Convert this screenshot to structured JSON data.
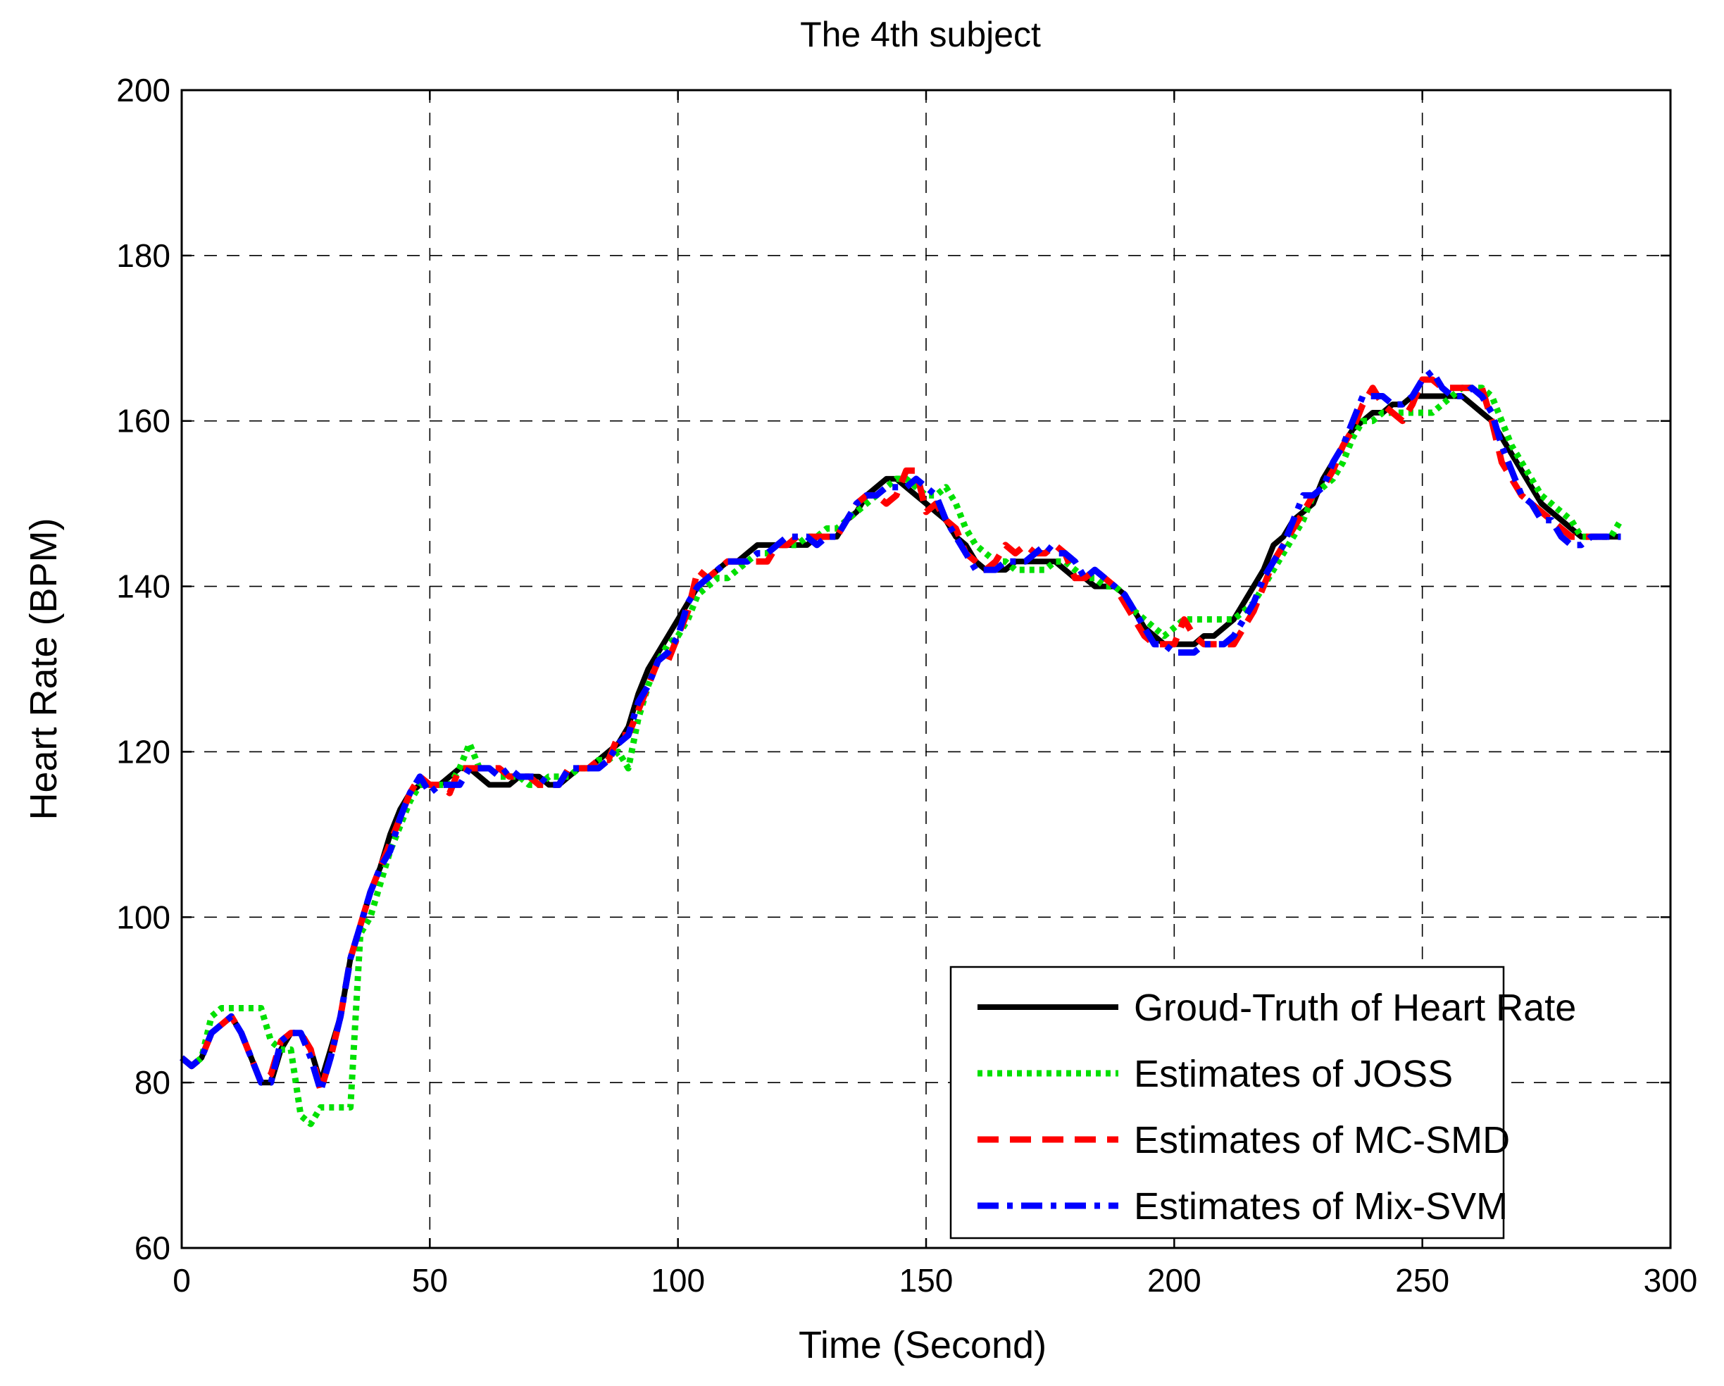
{
  "chart_data": {
    "type": "line",
    "title": "The 4th subject",
    "xlabel": "Time (Second)",
    "ylabel": "Heart Rate (BPM)",
    "xlim": [
      0,
      300
    ],
    "ylim": [
      60,
      200
    ],
    "xticks": [
      0,
      50,
      100,
      150,
      200,
      250,
      300
    ],
    "yticks": [
      60,
      80,
      100,
      120,
      140,
      160,
      180,
      200
    ],
    "grid": true,
    "legend_position": "bottom-right",
    "series": [
      {
        "name": "Groud-Truth of Heart Rate",
        "color": "#000000",
        "style": "solid",
        "x": [
          0,
          2,
          4,
          6,
          8,
          10,
          12,
          14,
          16,
          18,
          20,
          22,
          24,
          26,
          28,
          30,
          32,
          34,
          36,
          38,
          40,
          42,
          44,
          46,
          48,
          50,
          52,
          54,
          56,
          58,
          60,
          62,
          64,
          66,
          68,
          70,
          72,
          74,
          76,
          78,
          80,
          82,
          84,
          86,
          88,
          90,
          92,
          94,
          96,
          98,
          100,
          102,
          104,
          106,
          108,
          110,
          112,
          114,
          116,
          118,
          120,
          122,
          124,
          126,
          128,
          130,
          132,
          134,
          136,
          138,
          140,
          142,
          144,
          146,
          148,
          150,
          152,
          154,
          156,
          158,
          160,
          162,
          164,
          166,
          168,
          170,
          172,
          174,
          176,
          178,
          180,
          182,
          184,
          186,
          188,
          190,
          192,
          194,
          196,
          198,
          200,
          202,
          204,
          206,
          208,
          210,
          212,
          214,
          216,
          218,
          220,
          222,
          224,
          226,
          228,
          230,
          232,
          234,
          236,
          238,
          240,
          242,
          244,
          246,
          248,
          250,
          252,
          254,
          256,
          258,
          260,
          262,
          264,
          266,
          268,
          270,
          272,
          274,
          276,
          278,
          280,
          282,
          284,
          286,
          288,
          290
        ],
        "values": [
          83,
          82,
          83,
          86,
          87,
          88,
          86,
          83,
          80,
          80,
          84,
          86,
          86,
          84,
          80,
          84,
          88,
          95,
          99,
          103,
          106,
          110,
          113,
          115,
          116,
          116,
          116,
          117,
          118,
          118,
          117,
          116,
          116,
          116,
          117,
          117,
          117,
          116,
          116,
          117,
          118,
          118,
          119,
          120,
          121,
          123,
          127,
          130,
          132,
          134,
          136,
          138,
          140,
          141,
          142,
          143,
          143,
          144,
          145,
          145,
          145,
          145,
          145,
          145,
          146,
          146,
          146,
          148,
          149,
          151,
          152,
          153,
          153,
          152,
          151,
          150,
          149,
          148,
          146,
          145,
          143,
          142,
          142,
          142,
          143,
          143,
          143,
          143,
          143,
          142,
          141,
          141,
          140,
          140,
          140,
          139,
          137,
          135,
          134,
          133,
          133,
          133,
          133,
          134,
          134,
          135,
          136,
          138,
          140,
          142,
          145,
          146,
          148,
          149,
          150,
          153,
          155,
          157,
          159,
          160,
          161,
          161,
          162,
          162,
          163,
          163,
          163,
          163,
          163,
          163,
          162,
          161,
          160,
          158,
          156,
          154,
          152,
          150,
          149,
          148,
          147,
          146,
          146,
          146,
          146,
          146
        ]
      },
      {
        "name": "Estimates of JOSS",
        "color": "#00e000",
        "style": "dotted",
        "x": [
          0,
          2,
          4,
          6,
          8,
          10,
          12,
          14,
          16,
          18,
          20,
          22,
          24,
          26,
          28,
          30,
          32,
          34,
          36,
          38,
          40,
          42,
          44,
          46,
          48,
          50,
          52,
          54,
          56,
          58,
          60,
          62,
          64,
          66,
          68,
          70,
          72,
          74,
          76,
          78,
          80,
          82,
          84,
          86,
          88,
          90,
          92,
          94,
          96,
          98,
          100,
          102,
          104,
          106,
          108,
          110,
          112,
          114,
          116,
          118,
          120,
          122,
          124,
          126,
          128,
          130,
          132,
          134,
          136,
          138,
          140,
          142,
          144,
          146,
          148,
          150,
          152,
          154,
          156,
          158,
          160,
          162,
          164,
          166,
          168,
          170,
          172,
          174,
          176,
          178,
          180,
          182,
          184,
          186,
          188,
          190,
          192,
          194,
          196,
          198,
          200,
          202,
          204,
          206,
          208,
          210,
          212,
          214,
          216,
          218,
          220,
          222,
          224,
          226,
          228,
          230,
          232,
          234,
          236,
          238,
          240,
          242,
          244,
          246,
          248,
          250,
          252,
          254,
          256,
          258,
          260,
          262,
          264,
          266,
          268,
          270,
          272,
          274,
          276,
          278,
          280,
          282,
          284,
          286,
          288,
          290
        ],
        "values": [
          83,
          82,
          83,
          88,
          89,
          89,
          89,
          89,
          89,
          85,
          84,
          84,
          76,
          75,
          77,
          77,
          77,
          77,
          98,
          100,
          104,
          108,
          111,
          114,
          116,
          116,
          116,
          116,
          118,
          121,
          118,
          118,
          117,
          117,
          117,
          116,
          116,
          117,
          117,
          117,
          118,
          118,
          119,
          119,
          120,
          118,
          124,
          128,
          131,
          133,
          134,
          136,
          139,
          140,
          141,
          141,
          142,
          143,
          144,
          144,
          145,
          145,
          145,
          146,
          146,
          147,
          147,
          148,
          149,
          150,
          151,
          152,
          153,
          153,
          152,
          151,
          151,
          152,
          150,
          147,
          145,
          144,
          143,
          143,
          142,
          142,
          142,
          142,
          143,
          143,
          142,
          141,
          141,
          140,
          140,
          139,
          137,
          136,
          135,
          134,
          135,
          136,
          136,
          136,
          136,
          136,
          136,
          137,
          138,
          140,
          142,
          144,
          146,
          148,
          151,
          152,
          153,
          155,
          158,
          160,
          160,
          161,
          161,
          161,
          161,
          161,
          161,
          162,
          163,
          164,
          164,
          164,
          163,
          160,
          157,
          155,
          153,
          151,
          150,
          149,
          148,
          146,
          146,
          146,
          146,
          148
        ]
      },
      {
        "name": "Estimates of MC-SMD",
        "color": "#ff0000",
        "style": "dashed",
        "x": [
          0,
          2,
          4,
          6,
          8,
          10,
          12,
          14,
          16,
          18,
          20,
          22,
          24,
          26,
          28,
          30,
          32,
          34,
          36,
          38,
          40,
          42,
          44,
          46,
          48,
          50,
          52,
          54,
          56,
          58,
          60,
          62,
          64,
          66,
          68,
          70,
          72,
          74,
          76,
          78,
          80,
          82,
          84,
          86,
          88,
          90,
          92,
          94,
          96,
          98,
          100,
          102,
          104,
          106,
          108,
          110,
          112,
          114,
          116,
          118,
          120,
          122,
          124,
          126,
          128,
          130,
          132,
          134,
          136,
          138,
          140,
          142,
          144,
          146,
          148,
          150,
          152,
          154,
          156,
          158,
          160,
          162,
          164,
          166,
          168,
          170,
          172,
          174,
          176,
          178,
          180,
          182,
          184,
          186,
          188,
          190,
          192,
          194,
          196,
          198,
          200,
          202,
          204,
          206,
          208,
          210,
          212,
          214,
          216,
          218,
          220,
          222,
          224,
          226,
          228,
          230,
          232,
          234,
          236,
          238,
          240,
          242,
          244,
          246,
          248,
          250,
          252,
          254,
          256,
          258,
          260,
          262,
          264,
          266,
          268,
          270,
          272,
          274,
          276,
          278,
          280,
          282,
          284,
          286,
          288,
          290
        ],
        "values": [
          83,
          82,
          83,
          86,
          87,
          88,
          86,
          83,
          80,
          81,
          85,
          86,
          86,
          84,
          79,
          83,
          88,
          95,
          99,
          103,
          106,
          109,
          112,
          115,
          117,
          116,
          116,
          115,
          118,
          118,
          118,
          118,
          118,
          117,
          117,
          117,
          116,
          116,
          116,
          118,
          118,
          118,
          119,
          119,
          122,
          122,
          125,
          128,
          131,
          131,
          134,
          137,
          142,
          141,
          142,
          143,
          143,
          143,
          143,
          143,
          145,
          145,
          146,
          146,
          146,
          146,
          146,
          148,
          150,
          151,
          151,
          150,
          151,
          154,
          154,
          149,
          150,
          148,
          147,
          144,
          143,
          142,
          143,
          145,
          144,
          145,
          144,
          144,
          145,
          144,
          141,
          141,
          142,
          141,
          140,
          138,
          136,
          134,
          133,
          133,
          133,
          136,
          134,
          133,
          133,
          133,
          133,
          135,
          137,
          140,
          143,
          145,
          147,
          149,
          151,
          152,
          154,
          157,
          159,
          162,
          164,
          162,
          161,
          160,
          162,
          165,
          165,
          164,
          164,
          164,
          164,
          164,
          160,
          155,
          153,
          151,
          150,
          149,
          148,
          147,
          146,
          146,
          146,
          146,
          146,
          146
        ]
      },
      {
        "name": "Estimates of Mix-SVM",
        "color": "#0000ff",
        "style": "dashdot",
        "x": [
          0,
          2,
          4,
          6,
          8,
          10,
          12,
          14,
          16,
          18,
          20,
          22,
          24,
          26,
          28,
          30,
          32,
          34,
          36,
          38,
          40,
          42,
          44,
          46,
          48,
          50,
          52,
          54,
          56,
          58,
          60,
          62,
          64,
          66,
          68,
          70,
          72,
          74,
          76,
          78,
          80,
          82,
          84,
          86,
          88,
          90,
          92,
          94,
          96,
          98,
          100,
          102,
          104,
          106,
          108,
          110,
          112,
          114,
          116,
          118,
          120,
          122,
          124,
          126,
          128,
          130,
          132,
          134,
          136,
          138,
          140,
          142,
          144,
          146,
          148,
          150,
          152,
          154,
          156,
          158,
          160,
          162,
          164,
          166,
          168,
          170,
          172,
          174,
          176,
          178,
          180,
          182,
          184,
          186,
          188,
          190,
          192,
          194,
          196,
          198,
          200,
          202,
          204,
          206,
          208,
          210,
          212,
          214,
          216,
          218,
          220,
          222,
          224,
          226,
          228,
          230,
          232,
          234,
          236,
          238,
          240,
          242,
          244,
          246,
          248,
          250,
          252,
          254,
          256,
          258,
          260,
          262,
          264,
          266,
          268,
          270,
          272,
          274,
          276,
          278,
          280,
          282,
          284,
          286,
          288,
          290
        ],
        "values": [
          83,
          82,
          83,
          86,
          87,
          88,
          86,
          83,
          80,
          80,
          85,
          86,
          86,
          83,
          79,
          83,
          88,
          95,
          99,
          103,
          106,
          108,
          112,
          115,
          117,
          115,
          116,
          116,
          116,
          118,
          118,
          118,
          117,
          118,
          117,
          117,
          117,
          116,
          116,
          118,
          118,
          118,
          118,
          119,
          121,
          122,
          126,
          128,
          131,
          132,
          134,
          138,
          140,
          141,
          142,
          143,
          143,
          143,
          144,
          144,
          145,
          146,
          146,
          146,
          145,
          146,
          146,
          148,
          150,
          151,
          151,
          152,
          152,
          152,
          153,
          152,
          151,
          148,
          146,
          144,
          142,
          142,
          142,
          143,
          143,
          143,
          144,
          145,
          144,
          144,
          143,
          141,
          142,
          141,
          140,
          139,
          137,
          135,
          133,
          133,
          132,
          132,
          132,
          133,
          133,
          133,
          134,
          136,
          138,
          141,
          143,
          145,
          148,
          151,
          151,
          152,
          155,
          157,
          160,
          163,
          163,
          163,
          162,
          162,
          163,
          165,
          166,
          164,
          163,
          163,
          164,
          163,
          161,
          157,
          154,
          151,
          150,
          148,
          148,
          146,
          145,
          145,
          146,
          146,
          146,
          146
        ]
      }
    ]
  }
}
